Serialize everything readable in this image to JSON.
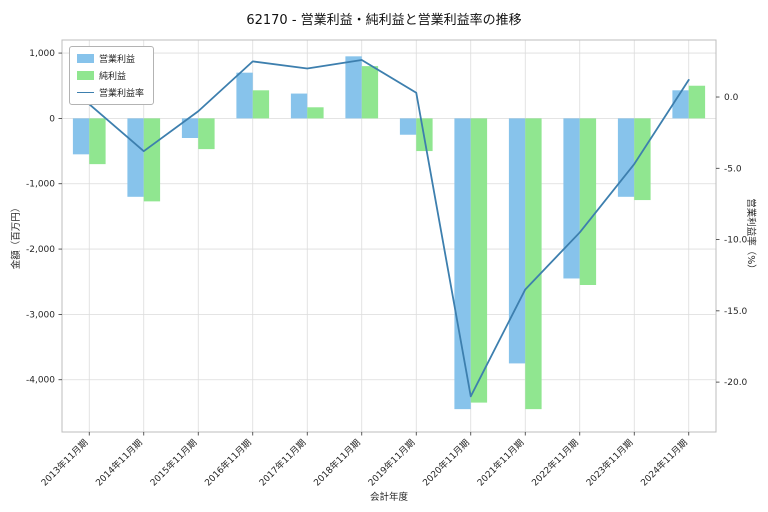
{
  "chart_data": {
    "type": "bar+line",
    "title": "62170 - 営業利益・純利益と営業利益率の推移",
    "xlabel": "会計年度",
    "ylabel_left": "金額（百万円）",
    "ylabel_right": "営業利益率（%）",
    "legend_position": "upper left",
    "grid": true,
    "categories": [
      "2013年11月期",
      "2014年11月期",
      "2015年11月期",
      "2016年11月期",
      "2017年11月期",
      "2018年11月期",
      "2019年11月期",
      "2020年11月期",
      "2021年11月期",
      "2022年11月期",
      "2023年11月期",
      "2024年11月期"
    ],
    "bar_series": [
      {
        "name": "営業利益",
        "color": "#87c3eb",
        "values": [
          -550,
          -1200,
          -300,
          700,
          380,
          950,
          -250,
          -4450,
          -3750,
          -2450,
          -1200,
          430
        ]
      },
      {
        "name": "純利益",
        "color": "#90e690",
        "values": [
          -700,
          -1270,
          -470,
          430,
          170,
          800,
          -500,
          -4350,
          -4450,
          -2550,
          -1250,
          500
        ]
      }
    ],
    "line_series": {
      "name": "営業利益率",
      "color": "#3d7fae",
      "values": [
        -0.5,
        -3.8,
        -1.0,
        2.5,
        2.0,
        2.6,
        0.3,
        -21.0,
        -13.5,
        -9.5,
        -4.7,
        1.2
      ]
    },
    "left_axis": {
      "ticks": [
        1000,
        0,
        -1000,
        -2000,
        -3000,
        -4000
      ],
      "min": -4800,
      "max": 1200
    },
    "right_axis": {
      "ticks": [
        0,
        -5,
        -10,
        -15,
        -20
      ],
      "min": -23.5,
      "max": 4
    }
  }
}
